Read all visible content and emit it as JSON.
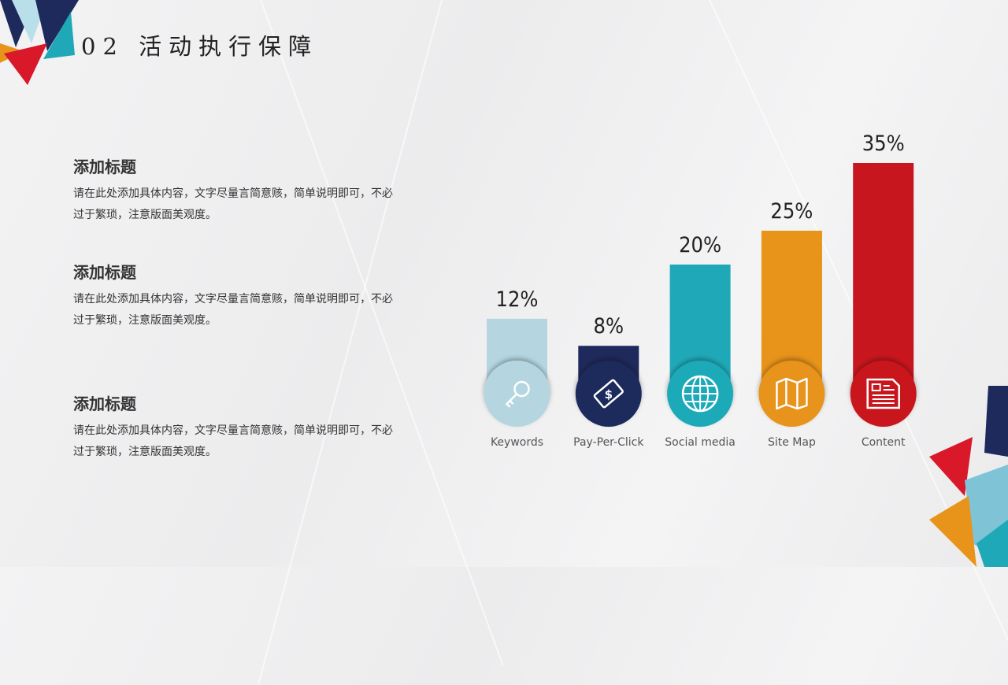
{
  "slide": {
    "title": "02  活动执行保障"
  },
  "blocks": [
    {
      "heading": "添加标题",
      "body": "请在此处添加具体内容，文字尽量言简意赅，简单说明即可，不必过于繁琐，注意版面美观度。"
    },
    {
      "heading": "添加标题",
      "body": "请在此处添加具体内容，文字尽量言简意赅，简单说明即可，不必过于繁琐，注意版面美观度。"
    },
    {
      "heading": "添加标题",
      "body": "请在此处添加具体内容，文字尽量言简意赅，简单说明即可，不必过于繁琐，注意版面美观度。"
    }
  ],
  "chart_data": {
    "type": "bar",
    "categories": [
      "Keywords",
      "Pay-Per-Click",
      "Social media",
      "Site Map",
      "Content"
    ],
    "values": [
      12,
      8,
      20,
      25,
      35
    ],
    "data_labels": [
      "12%",
      "8%",
      "20%",
      "25%",
      "35%"
    ],
    "icons": [
      "key-icon",
      "money-bill-icon",
      "globe-icon",
      "map-icon",
      "newspaper-icon"
    ],
    "colors": [
      "#b5d6e0",
      "#1f2a5c",
      "#1fa9b8",
      "#e8931a",
      "#c8161e"
    ],
    "unit": "%",
    "grid": false,
    "legend": "none"
  }
}
